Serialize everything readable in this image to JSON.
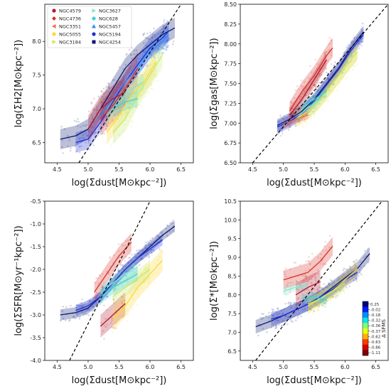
{
  "legend": {
    "entries": [
      {
        "name": "NGC4579",
        "color": "#b2182b",
        "marker": "circle"
      },
      {
        "name": "NGC4736",
        "color": "#d73027",
        "marker": "diamond"
      },
      {
        "name": "NGC3351",
        "color": "#f46d43",
        "marker": "tri-left"
      },
      {
        "name": "NGC5055",
        "color": "#fdd835",
        "marker": "circle"
      },
      {
        "name": "NGC3184",
        "color": "#c7e86a",
        "marker": "tri-right"
      },
      {
        "name": "NGC3627",
        "color": "#80e6d0",
        "marker": "tri-right"
      },
      {
        "name": "NGC628",
        "color": "#3fd2d9",
        "marker": "circle"
      },
      {
        "name": "NGC5457",
        "color": "#2b8cff",
        "marker": "triangle"
      },
      {
        "name": "NGC5194",
        "color": "#1b2fd6",
        "marker": "circle"
      },
      {
        "name": "NGC4254",
        "color": "#0b1a6e",
        "marker": "square"
      }
    ]
  },
  "colorbar": {
    "label": "Δ SFMS",
    "ticks": [
      "0.25",
      "-0.02",
      "-0.18",
      "-0.32",
      "-0.36",
      "-0.37",
      "-0.62",
      "-0.63",
      "-0.86",
      "-1.11"
    ],
    "colors": [
      "#00007f",
      "#0020ff",
      "#0090ff",
      "#15e0e5",
      "#7dff7a",
      "#e4ff13",
      "#ffb000",
      "#ff3b00",
      "#d40000",
      "#7f0000"
    ]
  },
  "chart_data": [
    {
      "type": "line",
      "xlabel": "log(Σdust[M⊙kpc⁻²])",
      "ylabel": "log(ΣH2[M⊙kpc⁻²])",
      "xlim": [
        4.3,
        6.7
      ],
      "ylim": [
        6.2,
        8.55
      ],
      "xticks": [
        "4.5",
        "5.0",
        "5.5",
        "6.0",
        "6.5"
      ],
      "yticks": [
        "6.5",
        "7.0",
        "7.5",
        "8.0"
      ],
      "one_to_one": [
        [
          4.85,
          6.2
        ],
        [
          6.5,
          8.55
        ]
      ],
      "series": [
        {
          "x": [
            4.55,
            4.8,
            5.0,
            5.2,
            5.4,
            5.6,
            5.8,
            6.0,
            6.2,
            6.4
          ],
          "y": [
            6.55,
            6.6,
            6.7,
            7.0,
            7.3,
            7.6,
            7.8,
            7.95,
            8.1,
            8.2
          ],
          "color": "#0b1a6e",
          "band": 0.15
        },
        {
          "x": [
            4.8,
            5.0,
            5.2,
            5.4,
            5.6,
            5.8,
            6.0,
            6.2,
            6.3
          ],
          "y": [
            6.5,
            6.55,
            6.8,
            7.1,
            7.4,
            7.65,
            7.9,
            8.05,
            8.15
          ],
          "color": "#1b2fd6",
          "band": 0.15
        },
        {
          "x": [
            5.2,
            5.4,
            5.6,
            5.8,
            6.0,
            6.2,
            6.3
          ],
          "y": [
            6.9,
            7.15,
            7.4,
            7.6,
            7.85,
            8.0,
            8.1
          ],
          "color": "#2b8cff",
          "band": 0.12
        },
        {
          "x": [
            5.2,
            5.4,
            5.6,
            5.8
          ],
          "y": [
            6.85,
            7.05,
            7.3,
            7.6
          ],
          "color": "#d73027",
          "band": 0.25
        },
        {
          "x": [
            5.0,
            5.2,
            5.4,
            5.6
          ],
          "y": [
            6.7,
            7.0,
            7.15,
            7.25
          ],
          "color": "#b2182b",
          "band": 0.2
        },
        {
          "x": [
            5.3,
            5.5,
            5.7,
            5.9,
            6.1
          ],
          "y": [
            6.65,
            6.9,
            7.2,
            7.4,
            7.7
          ],
          "color": "#fdd835",
          "band": 0.18
        },
        {
          "x": [
            5.4,
            5.6,
            5.8,
            6.0,
            6.2
          ],
          "y": [
            6.65,
            6.85,
            7.2,
            7.5,
            7.8
          ],
          "color": "#c7e86a",
          "band": 0.18
        },
        {
          "x": [
            5.4,
            5.5,
            5.6,
            5.8
          ],
          "y": [
            7.0,
            7.05,
            7.1,
            7.15
          ],
          "color": "#3fd2d9",
          "band": 0.12
        },
        {
          "x": [
            5.3,
            5.5,
            5.7,
            5.9
          ],
          "y": [
            6.9,
            7.1,
            7.3,
            7.4
          ],
          "color": "#80e6d0",
          "band": 0.12
        }
      ]
    },
    {
      "type": "line",
      "xlabel": "log(Σdust[M⊙kpc⁻²])",
      "ylabel": "log(Σgas[M⊙kpc⁻²])",
      "xlim": [
        4.3,
        6.7
      ],
      "ylim": [
        6.5,
        8.5
      ],
      "xticks": [
        "4.5",
        "5.0",
        "5.5",
        "6.0",
        "6.5"
      ],
      "yticks": [
        "6.50",
        "6.75",
        "7.00",
        "7.25",
        "7.50",
        "7.75",
        "8.00",
        "8.25",
        "8.50"
      ],
      "one_to_one": [
        [
          4.5,
          6.5
        ],
        [
          6.7,
          8.5
        ]
      ],
      "series": [
        {
          "x": [
            4.9,
            5.1,
            5.3,
            5.5,
            5.7,
            5.9,
            6.1,
            6.3
          ],
          "y": [
            6.97,
            7.05,
            7.15,
            7.3,
            7.5,
            7.7,
            7.95,
            8.15
          ],
          "color": "#0b1a6e",
          "band": 0.08
        },
        {
          "x": [
            4.9,
            5.1,
            5.3,
            5.5,
            5.7,
            5.9,
            6.1,
            6.3
          ],
          "y": [
            6.95,
            7.02,
            7.12,
            7.28,
            7.48,
            7.68,
            7.92,
            8.12
          ],
          "color": "#1b2fd6",
          "band": 0.08
        },
        {
          "x": [
            5.1,
            5.3,
            5.5,
            5.7,
            5.8
          ],
          "y": [
            7.15,
            7.4,
            7.6,
            7.85,
            7.95
          ],
          "color": "#d73027",
          "band": 0.12
        },
        {
          "x": [
            5.1,
            5.3,
            5.5,
            5.7
          ],
          "y": [
            7.1,
            7.3,
            7.55,
            7.8
          ],
          "color": "#b2182b",
          "band": 0.1
        },
        {
          "x": [
            5.2,
            5.4,
            5.6,
            5.8,
            6.0,
            6.2
          ],
          "y": [
            7.05,
            7.15,
            7.3,
            7.5,
            7.7,
            7.9
          ],
          "color": "#fdd835",
          "band": 0.1
        },
        {
          "x": [
            5.4,
            5.6,
            5.8,
            6.0,
            6.2
          ],
          "y": [
            7.15,
            7.3,
            7.5,
            7.7,
            7.9
          ],
          "color": "#c7e86a",
          "band": 0.1
        },
        {
          "x": [
            5.3,
            5.5,
            5.7
          ],
          "y": [
            7.2,
            7.3,
            7.4
          ],
          "color": "#3fd2d9",
          "band": 0.06
        },
        {
          "x": [
            5.2,
            5.4,
            5.6
          ],
          "y": [
            7.05,
            7.2,
            7.3
          ],
          "color": "#80e6d0",
          "band": 0.06
        },
        {
          "x": [
            5.0,
            5.2,
            5.4
          ],
          "y": [
            6.98,
            7.05,
            7.1
          ],
          "color": "#f46d43",
          "band": 0.05
        }
      ]
    },
    {
      "type": "line",
      "xlabel": "log(Σdust[M⊙kpc⁻²])",
      "ylabel": "log(ΣSFR[M⊙yr⁻¹kpc⁻²])",
      "xlim": [
        4.3,
        6.7
      ],
      "ylim": [
        -4.0,
        -0.5
      ],
      "xticks": [
        "4.5",
        "5.0",
        "5.5",
        "6.0",
        "6.5"
      ],
      "yticks": [
        "-4.0",
        "-3.5",
        "-3.0",
        "-2.5",
        "-2.0",
        "-1.5",
        "-1.0",
        "-0.5"
      ],
      "one_to_one": [
        [
          4.7,
          -4.0
        ],
        [
          6.0,
          -0.5
        ]
      ],
      "series": [
        {
          "x": [
            4.55,
            4.8,
            5.0,
            5.2,
            5.4,
            5.6,
            5.8,
            6.0,
            6.2,
            6.4
          ],
          "y": [
            -3.0,
            -2.95,
            -2.85,
            -2.6,
            -2.3,
            -2.0,
            -1.75,
            -1.5,
            -1.25,
            -1.05
          ],
          "color": "#0b1a6e",
          "band": 0.12
        },
        {
          "x": [
            4.8,
            5.0,
            5.2,
            5.4,
            5.6,
            5.8,
            6.0,
            6.2
          ],
          "y": [
            -2.9,
            -2.8,
            -2.6,
            -2.3,
            -2.0,
            -1.75,
            -1.55,
            -1.35
          ],
          "color": "#1b2fd6",
          "band": 0.12
        },
        {
          "x": [
            5.1,
            5.3,
            5.5,
            5.7
          ],
          "y": [
            -2.5,
            -2.1,
            -1.7,
            -1.4
          ],
          "color": "#d73027",
          "band": 0.2
        },
        {
          "x": [
            5.2,
            5.4,
            5.6
          ],
          "y": [
            -3.25,
            -3.0,
            -2.75
          ],
          "color": "#b2182b",
          "band": 0.25
        },
        {
          "x": [
            5.4,
            5.6,
            5.8,
            6.0,
            6.2
          ],
          "y": [
            -3.1,
            -2.8,
            -2.4,
            -2.1,
            -1.8
          ],
          "color": "#fdd835",
          "band": 0.25
        },
        {
          "x": [
            5.4,
            5.6,
            5.8,
            6.0
          ],
          "y": [
            -2.6,
            -2.4,
            -2.2,
            -2.0
          ],
          "color": "#c7e86a",
          "band": 0.2
        },
        {
          "x": [
            5.2,
            5.4,
            5.6,
            5.8
          ],
          "y": [
            -2.6,
            -2.4,
            -2.25,
            -2.1
          ],
          "color": "#3fd2d9",
          "band": 0.15
        },
        {
          "x": [
            5.2,
            5.4,
            5.6,
            5.8
          ],
          "y": [
            -2.5,
            -2.3,
            -2.1,
            -1.95
          ],
          "color": "#80e6d0",
          "band": 0.15
        }
      ]
    },
    {
      "type": "line",
      "xlabel": "log(Σdust[M⊙kpc⁻²])",
      "ylabel": "log(Σ*[M⊙kpc⁻²])",
      "xlim": [
        4.3,
        6.7
      ],
      "ylim": [
        6.25,
        10.5
      ],
      "xticks": [
        "4.5",
        "5.0",
        "5.5",
        "6.0",
        "6.5"
      ],
      "yticks": [
        "6.5",
        "7.0",
        "7.5",
        "8.0",
        "8.5",
        "9.0",
        "9.5",
        "10.0",
        "10.5"
      ],
      "one_to_one": [
        [
          4.55,
          6.25
        ],
        [
          6.6,
          10.5
        ]
      ],
      "series": [
        {
          "x": [
            4.55,
            4.8,
            5.0,
            5.2,
            5.4,
            5.6,
            5.8,
            6.0,
            6.2,
            6.4
          ],
          "y": [
            7.15,
            7.3,
            7.45,
            7.6,
            7.75,
            7.95,
            8.2,
            8.45,
            8.7,
            9.1
          ],
          "color": "#0b1a6e",
          "band": 0.18
        },
        {
          "x": [
            4.8,
            5.0,
            5.2,
            5.4,
            5.6,
            5.8,
            6.0,
            6.2
          ],
          "y": [
            7.35,
            7.45,
            7.6,
            7.75,
            7.95,
            8.15,
            8.4,
            8.6
          ],
          "color": "#1b2fd6",
          "band": 0.18
        },
        {
          "x": [
            5.0,
            5.2,
            5.4,
            5.6,
            5.8
          ],
          "y": [
            8.4,
            8.5,
            8.6,
            8.9,
            9.3
          ],
          "color": "#d73027",
          "band": 0.25
        },
        {
          "x": [
            5.2,
            5.4,
            5.6
          ],
          "y": [
            8.0,
            8.2,
            8.35
          ],
          "color": "#b2182b",
          "band": 0.3
        },
        {
          "x": [
            5.4,
            5.6,
            5.8,
            6.0,
            6.2
          ],
          "y": [
            7.7,
            7.9,
            8.1,
            8.4,
            8.7
          ],
          "color": "#fdd835",
          "band": 0.2
        },
        {
          "x": [
            5.4,
            5.6,
            5.8,
            6.0
          ],
          "y": [
            7.75,
            7.9,
            8.1,
            8.3
          ],
          "color": "#c7e86a",
          "band": 0.18
        },
        {
          "x": [
            5.0,
            5.2,
            5.4
          ],
          "y": [
            8.1,
            8.2,
            8.25
          ],
          "color": "#80e6d0",
          "band": 0.1
        },
        {
          "x": [
            5.3,
            5.5,
            5.7
          ],
          "y": [
            7.9,
            7.95,
            7.85
          ],
          "color": "#3fd2d9",
          "band": 0.12
        }
      ]
    }
  ]
}
